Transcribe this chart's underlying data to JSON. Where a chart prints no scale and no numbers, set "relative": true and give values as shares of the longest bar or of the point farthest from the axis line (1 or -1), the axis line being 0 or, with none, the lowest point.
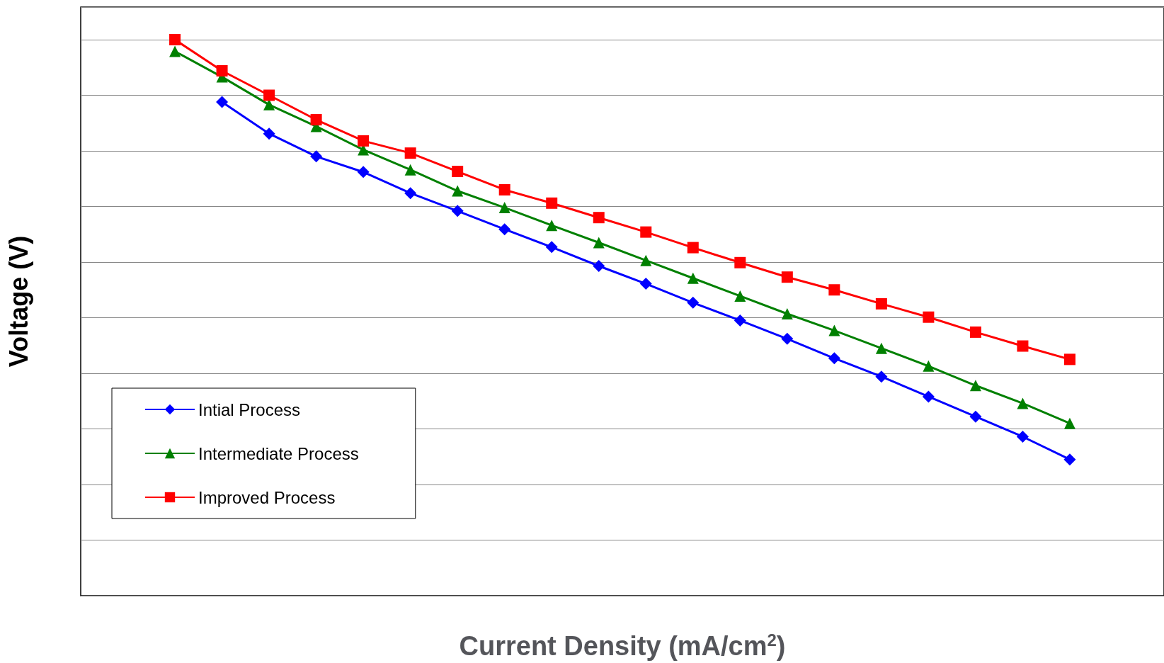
{
  "chart_data": {
    "type": "line",
    "relative": true,
    "xlabel": "Current Density (mA/cm$^{2}$)",
    "ylabel": "Voltage (V)",
    "grid": "y",
    "legend": "bottom left",
    "categories": [
      null,
      null,
      null,
      null,
      null,
      null,
      null,
      null,
      null,
      null,
      null,
      null,
      null,
      null,
      null,
      null,
      null,
      null,
      null,
      null
    ],
    "series": [
      {
        "name": "Intial Process",
        "color": "#0000ff",
        "marker": "diamond",
        "values": [
          null,
          0.888,
          0.831,
          0.79,
          0.762,
          0.724,
          0.692,
          0.659,
          0.627,
          0.593,
          0.561,
          0.527,
          0.495,
          0.462,
          0.427,
          0.394,
          0.358,
          0.322,
          0.286,
          0.245
        ]
      },
      {
        "name": "Intermediate Process",
        "color": "#008000",
        "marker": "triangle",
        "values": [
          0.979,
          0.933,
          0.883,
          0.844,
          0.802,
          0.766,
          0.728,
          0.698,
          0.666,
          0.635,
          0.603,
          0.571,
          0.539,
          0.507,
          0.477,
          0.445,
          0.413,
          0.378,
          0.346,
          0.31
        ]
      },
      {
        "name": "Improved Process",
        "color": "#ff0000",
        "marker": "square",
        "values": [
          1,
          0.944,
          0.9,
          0.856,
          0.818,
          0.796,
          0.763,
          0.73,
          0.706,
          0.68,
          0.654,
          0.626,
          0.599,
          0.573,
          0.55,
          0.525,
          0.501,
          0.474,
          0.449,
          0.425
        ]
      }
    ]
  }
}
